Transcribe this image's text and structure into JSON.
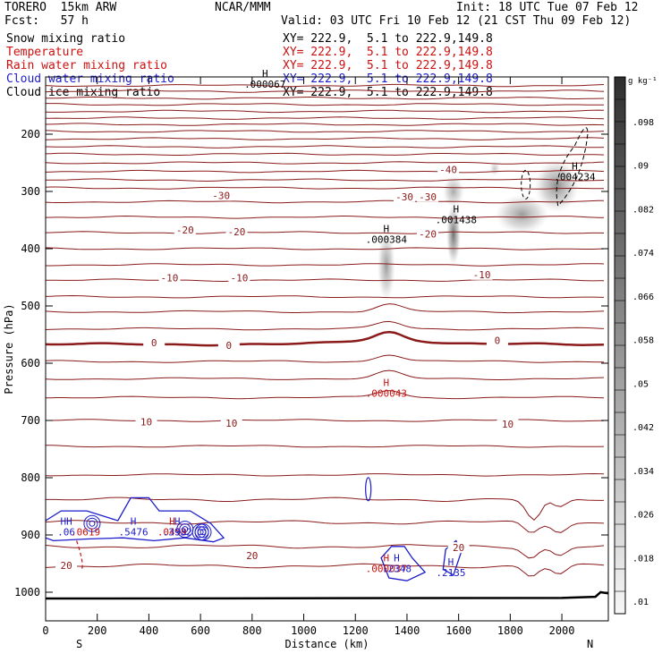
{
  "header": {
    "model": "TORERO  15km ARW",
    "org": "NCAR/MMM",
    "init": "Init: 18 UTC Tue 07 Feb 12",
    "fcst": "Fcst:   57 h",
    "valid": "Valid: 03 UTC Fri 10 Feb 12 (21 CST Thu 09 Feb 12)"
  },
  "fields": [
    {
      "name": "Snow mixing ratio",
      "xy": "",
      "color": "#000000"
    },
    {
      "name": "Temperature",
      "xy": "XY= 222.9,  5.1 to 222.9,149.8",
      "color": "#cc1111"
    },
    {
      "name": "Rain water mixing ratio",
      "xy": "XY= 222.9,  5.1 to 222.9,149.8",
      "color": "#cc1111"
    },
    {
      "name": "Cloud water mixing ratio",
      "xy": "XY= 222.9,  5.1 to 222.9,149.8",
      "color": "#1c1ccc"
    },
    {
      "name": "Cloud ice mixing ratio",
      "xy": "XY= 222.9,  5.1 to 222.9,149.8",
      "color": "#000000"
    }
  ],
  "snow_xy": "XY= 222.9,  5.1 to 222.9,149.8",
  "chart_data": {
    "type": "contour cross-section",
    "xlabel": "Distance (km)",
    "ylabel": "Pressure (hPa)",
    "xlim": [
      0,
      2180
    ],
    "ylim": [
      1050,
      100
    ],
    "x_ticks": [
      0,
      200,
      400,
      600,
      800,
      1000,
      1200,
      1400,
      1600,
      1800,
      2000
    ],
    "y_ticks": [
      200,
      300,
      400,
      500,
      600,
      700,
      800,
      900,
      1000
    ],
    "end_labels": {
      "left": "S",
      "right": "N"
    },
    "colorbar": {
      "unit": "g kg⁻¹",
      "ticks": [
        0.01,
        0.018,
        0.026,
        0.034,
        0.042,
        0.05,
        0.058,
        0.066,
        0.074,
        0.082,
        0.09,
        0.098
      ],
      "tick_labels": [
        ".01",
        ".018",
        ".026",
        ".034",
        ".042",
        ".05",
        ".058",
        ".066",
        ".074",
        ".082",
        ".09",
        ".098"
      ]
    },
    "temperature_isotherm_labels": [
      {
        "value": "-40",
        "x": 1560,
        "p": 262
      },
      {
        "value": "-30",
        "x": 680,
        "p": 307
      },
      {
        "value": "-30",
        "x": 1390,
        "p": 309
      },
      {
        "value": "-30",
        "x": 1480,
        "p": 309
      },
      {
        "value": "-20",
        "x": 540,
        "p": 367
      },
      {
        "value": "-20",
        "x": 740,
        "p": 370
      },
      {
        "value": "-20",
        "x": 1480,
        "p": 374
      },
      {
        "value": "-10",
        "x": 480,
        "p": 451
      },
      {
        "value": "-10",
        "x": 750,
        "p": 451
      },
      {
        "value": "-10",
        "x": 1690,
        "p": 445
      },
      {
        "value": "0",
        "x": 420,
        "p": 564
      },
      {
        "value": "0",
        "x": 710,
        "p": 569
      },
      {
        "value": "0",
        "x": 1750,
        "p": 560
      },
      {
        "value": "10",
        "x": 390,
        "p": 702
      },
      {
        "value": "10",
        "x": 720,
        "p": 705
      },
      {
        "value": "10",
        "x": 1790,
        "p": 706
      },
      {
        "value": "20",
        "x": 1600,
        "p": 922
      },
      {
        "value": "20",
        "x": 80,
        "p": 953
      },
      {
        "value": "20",
        "x": 800,
        "p": 936
      }
    ],
    "extrema_labels": [
      {
        "mark": "H",
        "value": ".000067",
        "x": 850,
        "p": 100,
        "color": "#000000"
      },
      {
        "mark": "H",
        "value": ".004234",
        "x": 2050,
        "p": 262,
        "color": "#000000"
      },
      {
        "mark": "H",
        "value": ".001438",
        "x": 1590,
        "p": 337,
        "color": "#000000"
      },
      {
        "mark": "H",
        "value": ".000384",
        "x": 1320,
        "p": 371,
        "color": "#000000"
      },
      {
        "mark": "H",
        "value": ".000043",
        "x": 1320,
        "p": 640,
        "color": "#cc1111"
      },
      {
        "mark": "HH",
        "value": ".06",
        "x": 80,
        "p": 882,
        "color": "#1c1ccc"
      },
      {
        "mark": "",
        "value": ".0619",
        "x": 120,
        "p": 882,
        "color": "#cc1111"
      },
      {
        "mark": "H",
        "value": ".5476",
        "x": 340,
        "p": 882,
        "color": "#1c1ccc"
      },
      {
        "mark": "H",
        "value": ".0459",
        "x": 490,
        "p": 882,
        "color": "#cc1111"
      },
      {
        "mark": "H",
        "value": ".3932",
        "x": 510,
        "p": 882,
        "color": "#1c1ccc"
      },
      {
        "mark": "H",
        "value": ".000037",
        "x": 1320,
        "p": 946,
        "color": "#cc1111"
      },
      {
        "mark": "H",
        "value": ".2348",
        "x": 1360,
        "p": 946,
        "color": "#1c1ccc"
      },
      {
        "mark": "H",
        "value": ".2135",
        "x": 1570,
        "p": 953,
        "color": "#1c1ccc"
      }
    ],
    "colors": {
      "temperature": "#8b1a1a",
      "cloud_water": "#1c1ccc",
      "rain": "#cc1111",
      "cloud_ice": "#000000",
      "terrain": "#000000"
    }
  }
}
